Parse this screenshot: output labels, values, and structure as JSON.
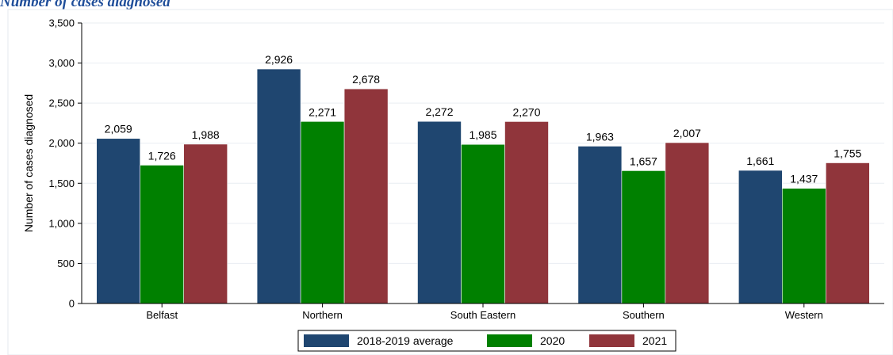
{
  "header": {
    "title": "Number of cases diagnosed"
  },
  "chart_data": {
    "type": "bar",
    "title": "Number of cases diagnosed",
    "xlabel": "",
    "ylabel": "Number of cases diagnosed",
    "ylim": [
      0,
      3500
    ],
    "yticks": [
      0,
      500,
      1000,
      1500,
      2000,
      2500,
      3000,
      3500
    ],
    "ytick_labels": [
      "0",
      "500",
      "1,000",
      "1,500",
      "2,000",
      "2,500",
      "3,000",
      "3,500"
    ],
    "grid": true,
    "legend_position": "bottom",
    "categories": [
      "Belfast",
      "Northern",
      "South Eastern",
      "Southern",
      "Western"
    ],
    "series": [
      {
        "name": "2018-2019 average",
        "color": "#1f4670",
        "values": [
          2059,
          2926,
          2272,
          1963,
          1661
        ],
        "labels": [
          "2,059",
          "2,926",
          "2,272",
          "1,963",
          "1,661"
        ]
      },
      {
        "name": "2020",
        "color": "#008000",
        "values": [
          1726,
          2271,
          1985,
          1657,
          1437
        ],
        "labels": [
          "1,726",
          "2,271",
          "1,985",
          "1,657",
          "1,437"
        ]
      },
      {
        "name": "2021",
        "color": "#90353b",
        "values": [
          1988,
          2678,
          2270,
          2007,
          1755
        ],
        "labels": [
          "1,988",
          "2,678",
          "2,270",
          "2,007",
          "1,755"
        ]
      }
    ]
  }
}
